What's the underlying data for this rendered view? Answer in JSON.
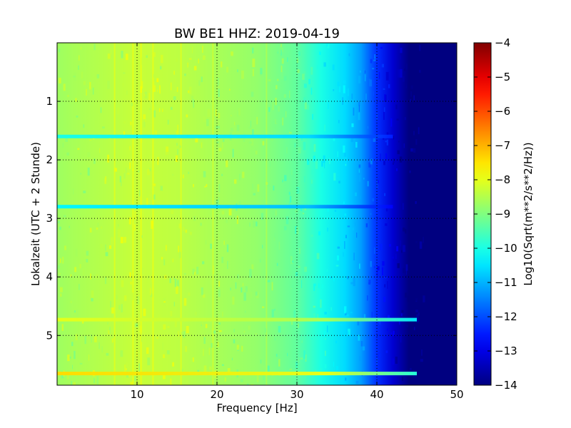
{
  "chart_data": {
    "type": "heatmap",
    "title": "BW BE1 HHZ: 2019-04-19",
    "xlabel": "Frequency [Hz]",
    "ylabel": "Lokalzeit (UTC + 2 Stunde)",
    "xlim": [
      0,
      50
    ],
    "ylim": [
      0,
      5.85
    ],
    "y_inverted": true,
    "x_ticks": [
      10,
      20,
      30,
      40,
      50
    ],
    "x_tick_labels": [
      "10",
      "20",
      "30",
      "40",
      "50"
    ],
    "y_ticks": [
      1,
      2,
      3,
      4,
      5
    ],
    "y_tick_labels": [
      "1",
      "2",
      "3",
      "4",
      "5"
    ],
    "grid": true,
    "colormap": "jet",
    "colorbar": {
      "label": "Log10(Sqrt(m**2/s**2/Hz))",
      "min": -14,
      "max": -4,
      "ticks": [
        -4,
        -5,
        -6,
        -7,
        -8,
        -9,
        -10,
        -11,
        -12,
        -13,
        -14
      ],
      "tick_labels": [
        "−4",
        "−5",
        "−6",
        "−7",
        "−8",
        "−9",
        "−10",
        "−11",
        "−12",
        "−13",
        "−14"
      ]
    },
    "spectrum_profile": {
      "frequency_hz": [
        0,
        2,
        5,
        10,
        15,
        20,
        25,
        30,
        33,
        36,
        38,
        40,
        42,
        44,
        50
      ],
      "log10_amplitude": [
        -8.7,
        -8.6,
        -8.5,
        -8.3,
        -8.4,
        -8.6,
        -8.8,
        -9.3,
        -10.0,
        -10.6,
        -11.2,
        -12.3,
        -13.2,
        -14.0,
        -14.0
      ]
    },
    "spectral_lines_hz": [
      7.2,
      9.5,
      10.5,
      12.0,
      15.5,
      19.5,
      26.2
    ],
    "horizontal_events": [
      {
        "time_h": 5.65,
        "log10_amplitude": -7.4,
        "f_max_hz": 45
      },
      {
        "time_h": 4.73,
        "log10_amplitude": -8.0,
        "f_max_hz": 45
      },
      {
        "time_h": 1.6,
        "log10_amplitude": -10.0,
        "f_max_hz": 42
      },
      {
        "time_h": 2.8,
        "log10_amplitude": -10.3,
        "f_max_hz": 42
      }
    ]
  }
}
